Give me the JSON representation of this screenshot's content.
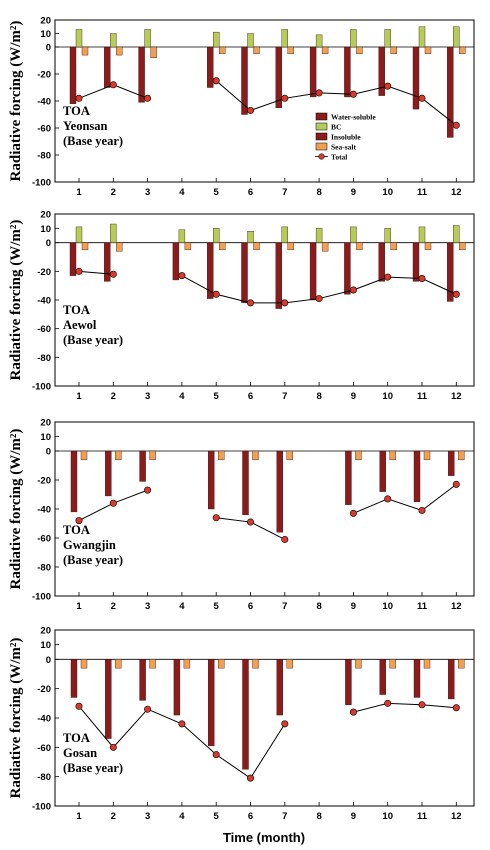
{
  "figure": {
    "x_title": "Time (month)",
    "legend": {
      "water_soluble": "Water-soluble",
      "bc": "BC",
      "insoluble": "Insoluble",
      "sea_salt": "Sea-salt",
      "total": "Total"
    },
    "colors": {
      "water_soluble": "#8b1c1c",
      "bc": "#b5cd57",
      "insoluble": "#8b1c1c",
      "sea_salt": "#f0a050",
      "total_marker": "#d83a2e",
      "line": "#000000"
    }
  },
  "chart_data": [
    {
      "type": "bar",
      "ylabel": "Radiative forcing (W/m²)",
      "site_label": [
        "TOA",
        "Yeonsan",
        "(Base year)"
      ],
      "ylim": [
        -100,
        20
      ],
      "yticks": [
        20,
        10,
        0,
        -20,
        -40,
        -60,
        -80,
        -100
      ],
      "categories": [
        "1",
        "2",
        "3",
        "4",
        "5",
        "6",
        "7",
        "8",
        "9",
        "10",
        "11",
        "12"
      ],
      "series": [
        {
          "name": "Water-soluble",
          "values": [
            -42,
            -30,
            -41,
            null,
            -30,
            -50,
            -45,
            -37,
            -37,
            -36,
            -46,
            -67
          ]
        },
        {
          "name": "BC",
          "values": [
            13,
            10,
            13,
            null,
            11,
            10,
            13,
            9,
            13,
            13,
            15,
            15
          ]
        },
        {
          "name": "Sea-salt",
          "values": [
            -6,
            -6,
            -8,
            null,
            -5,
            -5,
            -5,
            -5,
            -5,
            -5,
            -5,
            -5
          ]
        },
        {
          "name": "Total",
          "values": [
            -38,
            -28,
            -38,
            null,
            -25,
            -47,
            -38,
            -34,
            -35,
            -29,
            -38,
            -58
          ]
        }
      ]
    },
    {
      "type": "bar",
      "ylabel": "Radiative forcing (W/m²)",
      "site_label": [
        "TOA",
        "Aewol",
        "(Base year)"
      ],
      "ylim": [
        -100,
        20
      ],
      "yticks": [
        20,
        10,
        0,
        -20,
        -40,
        -60,
        -80,
        -100
      ],
      "categories": [
        "1",
        "2",
        "3",
        "4",
        "5",
        "6",
        "7",
        "8",
        "9",
        "10",
        "11",
        "12"
      ],
      "series": [
        {
          "name": "Water-soluble",
          "values": [
            -23,
            -27,
            null,
            -26,
            -39,
            -42,
            -46,
            -40,
            -36,
            -27,
            -27,
            -41
          ]
        },
        {
          "name": "BC",
          "values": [
            11,
            13,
            null,
            9,
            10,
            8,
            11,
            10,
            11,
            10,
            11,
            12
          ]
        },
        {
          "name": "Sea-salt",
          "values": [
            -5,
            -6,
            null,
            -5,
            -5,
            -5,
            -5,
            -6,
            -5,
            -5,
            -5,
            -5
          ]
        },
        {
          "name": "Total",
          "values": [
            -20,
            -22,
            null,
            -23,
            -36,
            -42,
            -42,
            -39,
            -33,
            -24,
            -25,
            -36
          ]
        }
      ]
    },
    {
      "type": "bar",
      "ylabel": "Radiative forcing (W/m²)",
      "site_label": [
        "TOA",
        "Gwangjin",
        "(Base year)"
      ],
      "ylim": [
        -100,
        20
      ],
      "yticks": [
        20,
        10,
        0,
        -20,
        -40,
        -60,
        -80,
        -100
      ],
      "categories": [
        "1",
        "2",
        "3",
        "4",
        "5",
        "6",
        "7",
        "8",
        "9",
        "10",
        "11",
        "12"
      ],
      "series": [
        {
          "name": "Water-soluble",
          "values": [
            -42,
            -31,
            -21,
            null,
            -40,
            -44,
            -56,
            null,
            -37,
            -28,
            -35,
            -17
          ]
        },
        {
          "name": "Sea-salt",
          "values": [
            -6,
            -6,
            -6,
            null,
            -6,
            -6,
            -6,
            null,
            -6,
            -6,
            -6,
            -6
          ]
        },
        {
          "name": "Total",
          "values": [
            -48,
            -36,
            -27,
            null,
            -46,
            -49,
            -61,
            null,
            -43,
            -33,
            -41,
            -23
          ]
        }
      ]
    },
    {
      "type": "bar",
      "ylabel": "Radiative forcing (W/m²)",
      "site_label": [
        "TOA",
        "Gosan",
        "(Base year)"
      ],
      "ylim": [
        -100,
        20
      ],
      "yticks": [
        20,
        10,
        0,
        -20,
        -40,
        -60,
        -80,
        -100
      ],
      "categories": [
        "1",
        "2",
        "3",
        "4",
        "5",
        "6",
        "7",
        "8",
        "9",
        "10",
        "11",
        "12"
      ],
      "series": [
        {
          "name": "Water-soluble",
          "values": [
            -26,
            -54,
            -28,
            -38,
            -59,
            -75,
            -38,
            null,
            -31,
            -24,
            -26,
            -27
          ]
        },
        {
          "name": "Sea-salt",
          "values": [
            -6,
            -6,
            -6,
            -6,
            -6,
            -6,
            -6,
            null,
            -6,
            -6,
            -6,
            -6
          ]
        },
        {
          "name": "Total",
          "values": [
            -32,
            -60,
            -34,
            -44,
            -65,
            -81,
            -44,
            null,
            -36,
            -30,
            -31,
            -33
          ]
        }
      ]
    }
  ]
}
